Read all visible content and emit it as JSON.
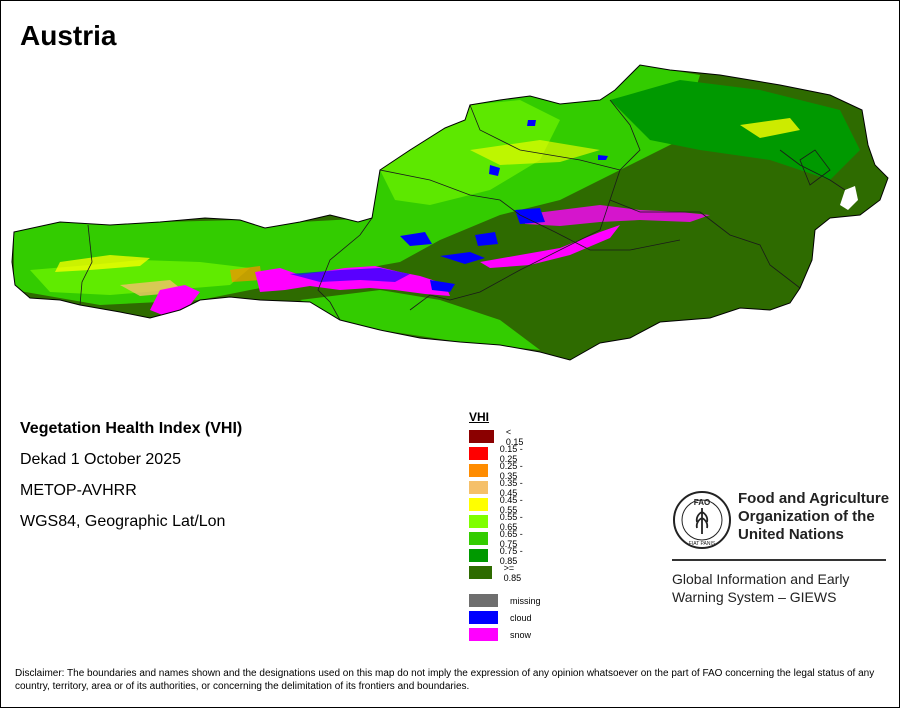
{
  "title": "Austria",
  "info": {
    "heading": "Vegetation Health Index (VHI)",
    "period": "Dekad 1 October 2025",
    "sensor": "METOP-AVHRR",
    "projection": "WGS84, Geographic Lat/Lon"
  },
  "legend": {
    "title": "VHI",
    "classes": [
      {
        "label": "< 0.15",
        "color": "#8b0000"
      },
      {
        "label": "0.15 - 0.25",
        "color": "#ff0000"
      },
      {
        "label": "0.25 - 0.35",
        "color": "#ff8c00"
      },
      {
        "label": "0.35 - 0.45",
        "color": "#f5c06a"
      },
      {
        "label": "0.45 - 0.55",
        "color": "#ffff00"
      },
      {
        "label": "0.55 - 0.65",
        "color": "#7fff00"
      },
      {
        "label": "0.65 - 0.75",
        "color": "#33cc00"
      },
      {
        "label": "0.75 - 0.85",
        "color": "#009900"
      },
      {
        "label": ">= 0.85",
        "color": "#2e6b00"
      }
    ],
    "other": [
      {
        "label": "missing",
        "color": "#6e6e6e"
      },
      {
        "label": "cloud",
        "color": "#0000ff"
      },
      {
        "label": "snow",
        "color": "#ff00ff"
      }
    ]
  },
  "organization": {
    "logo_letters": "FAO",
    "name_line1": "Food and Agriculture",
    "name_line2": "Organization of the",
    "name_line3": "United Nations",
    "system_line1": "Global Information and Early",
    "system_line2": "Warning System – GIEWS"
  },
  "disclaimer": "Disclaimer: The boundaries and names shown and the designations used on this map do not imply the expression of any opinion whatsoever on the part of FAO concerning the legal status of any country, territory, area or of its authorities, or concerning the delimitation of its frontiers and boundaries."
}
